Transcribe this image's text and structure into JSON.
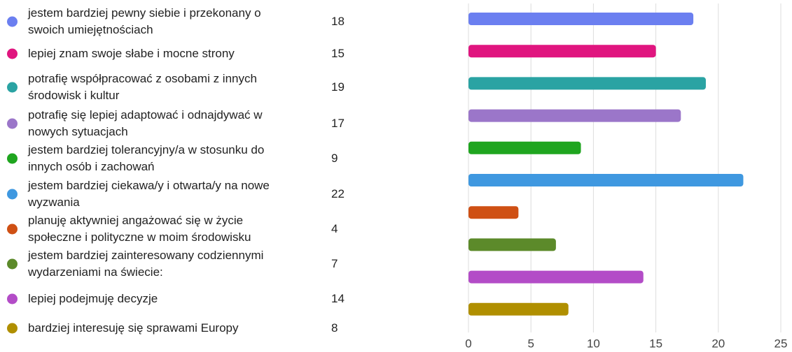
{
  "chart_data": {
    "type": "bar",
    "orientation": "horizontal",
    "categories": [
      "jestem bardziej pewny siebie i przekonany o swoich umiejętnościach",
      "lepiej znam swoje słabe i mocne strony",
      "potrafię współpracować z osobami z innych środowisk i kultur",
      "potrafię się lepiej adaptować i odnajdywać w nowych sytuacjach",
      "jestem bardziej tolerancyjny/a w stosunku do innych osób i zachowań",
      "jestem bardziej ciekawa/y i otwarta/y na nowe wyzwania",
      "planuję aktywniej angażować się w życie społeczne i polityczne w moim środowisku",
      "jestem bardziej zainteresowany codziennymi wydarzeniami na świecie:",
      "lepiej podejmuję decyzje",
      "bardziej interesuję się sprawami Europy"
    ],
    "values": [
      18,
      15,
      19,
      17,
      9,
      22,
      4,
      7,
      14,
      8
    ],
    "colors": [
      "#6b7ff0",
      "#e0157f",
      "#2aa3a3",
      "#9b76c9",
      "#1fa51f",
      "#3f98e0",
      "#cf5014",
      "#5c8a2a",
      "#b34cc7",
      "#b08f00"
    ],
    "xlim": [
      0,
      25
    ],
    "xticks": [
      0,
      5,
      10,
      15,
      20,
      25
    ],
    "grid": true
  }
}
